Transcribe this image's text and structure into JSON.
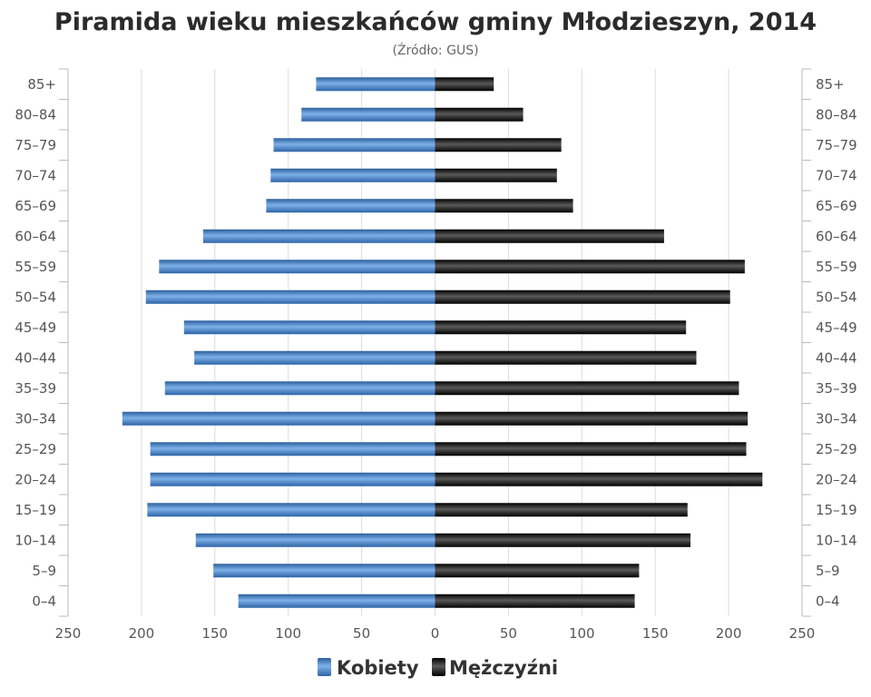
{
  "chart_data": {
    "type": "bar",
    "orientation": "horizontal",
    "layout": "population-pyramid",
    "title": "Piramida wieku mieszkańców gminy Młodzieszyn, 2014",
    "subtitle": "(Źródło: GUS)",
    "categories": [
      "85+",
      "80–84",
      "75–79",
      "70–74",
      "65–69",
      "60–64",
      "55–59",
      "50–54",
      "45–49",
      "40–44",
      "35–39",
      "30–34",
      "25–29",
      "20–24",
      "15–19",
      "10–14",
      "5–9",
      "0–4"
    ],
    "series": [
      {
        "name": "Kobiety",
        "color": "#3b78c0",
        "values": [
          81,
          91,
          110,
          112,
          115,
          158,
          188,
          197,
          171,
          164,
          184,
          213,
          194,
          194,
          196,
          163,
          151,
          134
        ]
      },
      {
        "name": "Mężczyźni",
        "color": "#111111",
        "values": [
          40,
          60,
          86,
          83,
          94,
          156,
          211,
          201,
          171,
          178,
          207,
          213,
          212,
          223,
          172,
          174,
          139,
          136
        ]
      }
    ],
    "xticks": [
      "250",
      "200",
      "150",
      "100",
      "50",
      "0",
      "50",
      "100",
      "150",
      "200",
      "250"
    ],
    "xlim": [
      -250,
      250
    ],
    "grid": true,
    "legend_position": "bottom"
  }
}
